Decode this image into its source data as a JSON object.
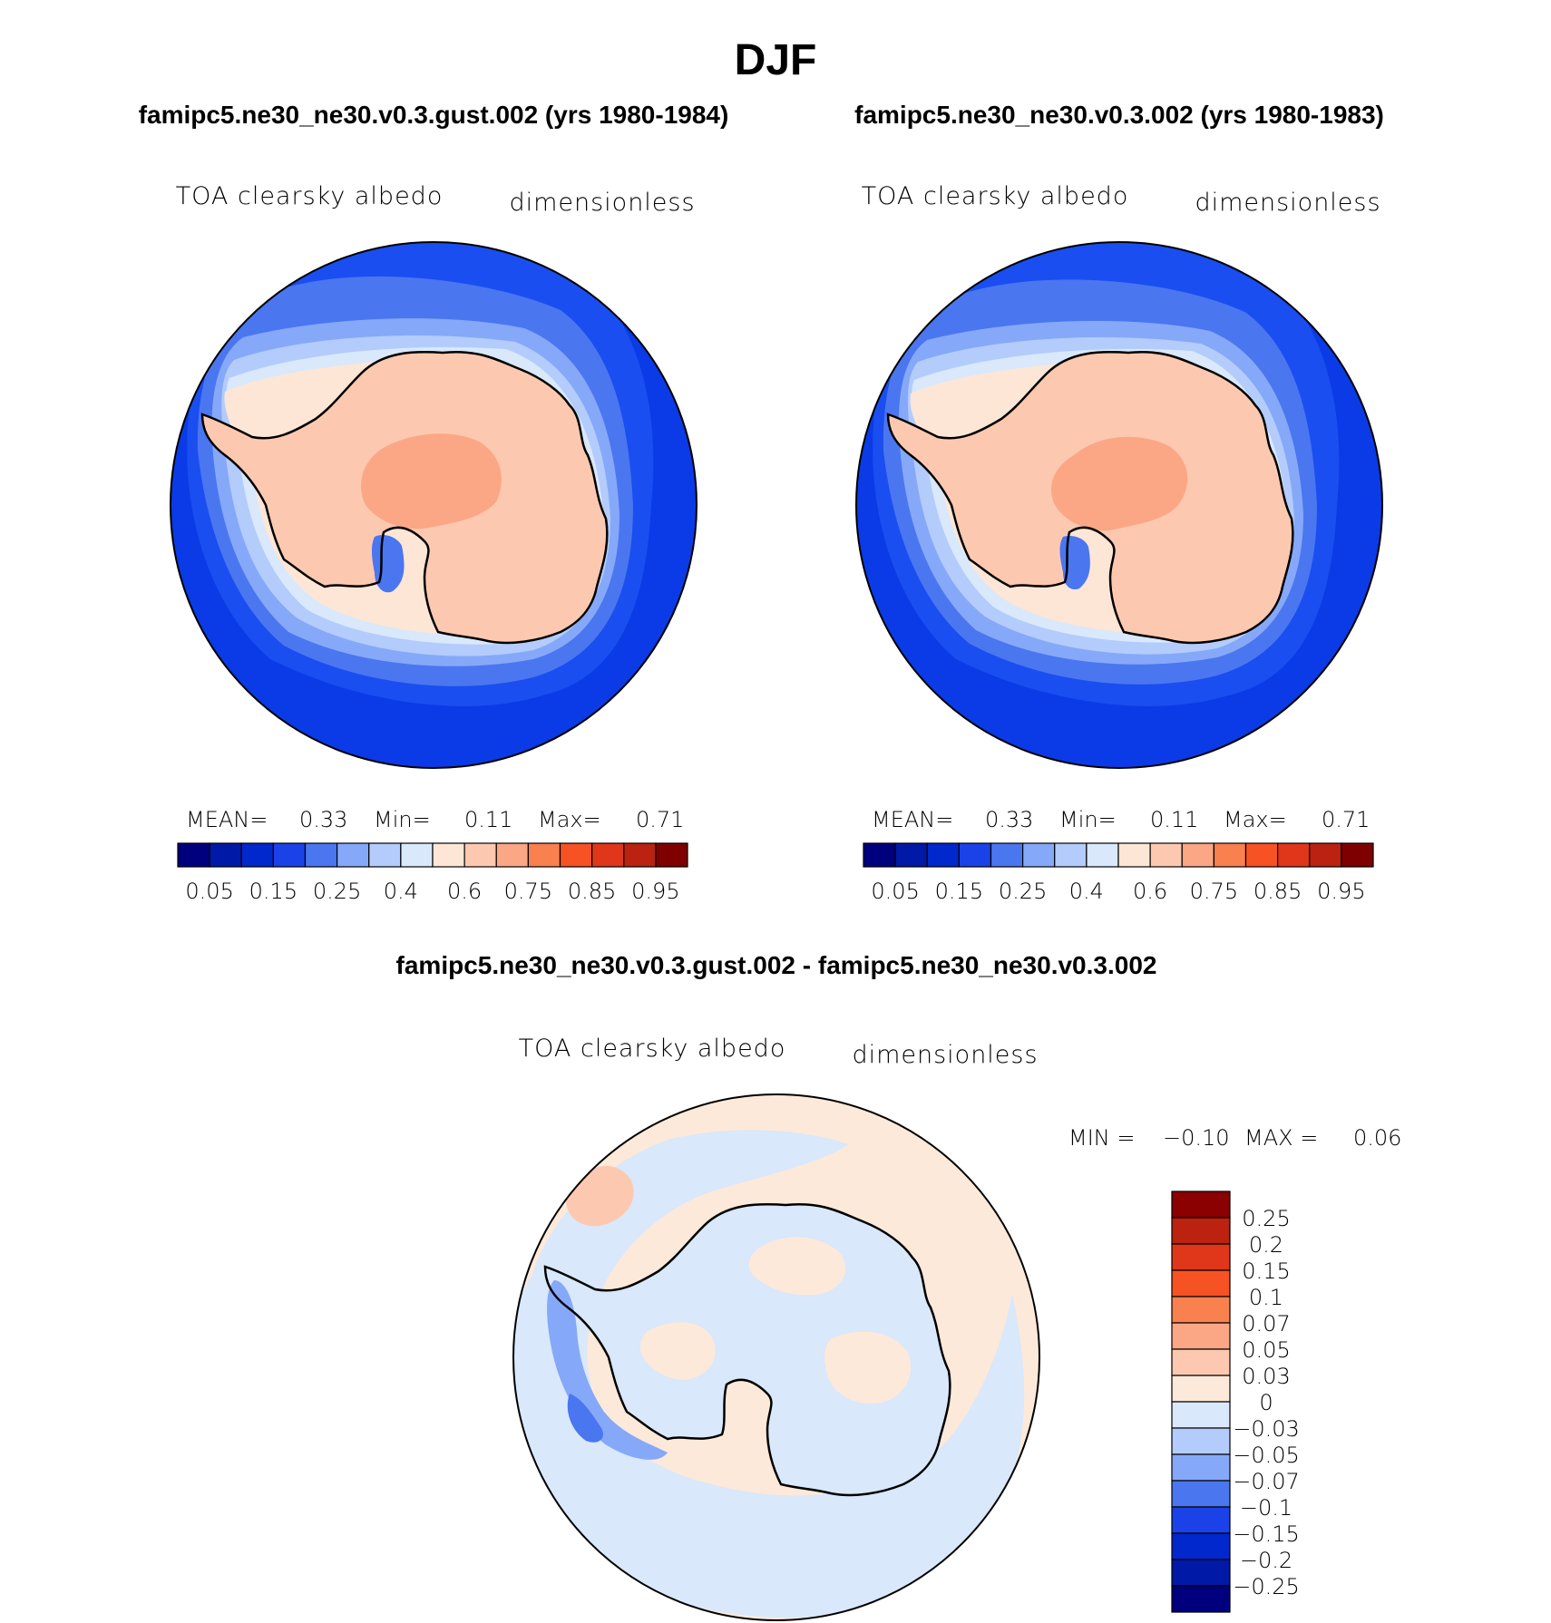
{
  "figure": {
    "season": "DJF",
    "case1_title": "famipc5.ne30_ne30.v0.3.gust.002 (yrs 1980-1984)",
    "case2_title": "famipc5.ne30_ne30.v0.3.002 (yrs 1980-1983)",
    "diff_title": "famipc5.ne30_ne30.v0.3.gust.002 - famipc5.ne30_ne30.v0.3.002"
  },
  "panels": [
    {
      "id": "case1",
      "variable": "TOA clearsky albedo",
      "units": "dimensionless",
      "stats": {
        "mean_label": "MEAN=",
        "mean": "0.33",
        "min_label": "Min=",
        "min": "0.11",
        "max_label": "Max=",
        "max": "0.71"
      }
    },
    {
      "id": "case2",
      "variable": "TOA clearsky albedo",
      "units": "dimensionless",
      "stats": {
        "mean_label": "MEAN=",
        "mean": "0.33",
        "min_label": "Min=",
        "min": "0.11",
        "max_label": "Max=",
        "max": "0.71"
      }
    },
    {
      "id": "diff",
      "variable": "TOA clearsky albedo",
      "units": "dimensionless",
      "stats": {
        "min_label": "MIN =",
        "min": "−0.10",
        "max_label": "MAX =",
        "max": "0.06"
      }
    }
  ],
  "colorbars": {
    "absolute": {
      "orientation": "horizontal",
      "colors": [
        "#00007f",
        "#0019a6",
        "#0028cc",
        "#1a42e8",
        "#4a76f0",
        "#86a8f8",
        "#b3ccfb",
        "#d9e8fb",
        "#fde6d6",
        "#fcc9b0",
        "#fba786",
        "#f9804f",
        "#f75224",
        "#e0361a",
        "#bb2210",
        "#7f0000"
      ],
      "tick_labels": [
        "0.05",
        "0.15",
        "0.25",
        "0.4",
        "0.6",
        "0.75",
        "0.85",
        "0.95"
      ]
    },
    "difference": {
      "orientation": "vertical",
      "colors_top_to_bottom": [
        "#8b0000",
        "#bb2210",
        "#e0361a",
        "#f75224",
        "#f9804f",
        "#fba786",
        "#fcc9b0",
        "#fde9d9",
        "#d9e8fb",
        "#b3ccfb",
        "#86a8f8",
        "#4a76f0",
        "#1a42e8",
        "#0028cc",
        "#0019a6",
        "#00007f"
      ],
      "tick_labels": [
        "0.25",
        "0.2",
        "0.15",
        "0.1",
        "0.07",
        "0.05",
        "0.03",
        "0",
        "−0.03",
        "−0.05",
        "−0.07",
        "−0.1",
        "−0.15",
        "−0.2",
        "−0.25"
      ]
    }
  },
  "map_colors": {
    "ocean_low": "#0a3be6",
    "ocean_mid": "#1a4ef0",
    "ring_1": "#4a76f0",
    "ring_2": "#86a8f8",
    "ring_3": "#b3ccfb",
    "ring_4": "#d9e8fb",
    "ring_5": "#fde6d6",
    "continent": "#fcc9b0",
    "continent_high": "#fba786",
    "diff_positive": "#fde9d9",
    "diff_negative": "#d9e8fb",
    "diff_neg_strong": "#86a8f8",
    "diff_neg_stronger": "#4a76f0",
    "diff_pos_strong": "#fcc9b0"
  }
}
